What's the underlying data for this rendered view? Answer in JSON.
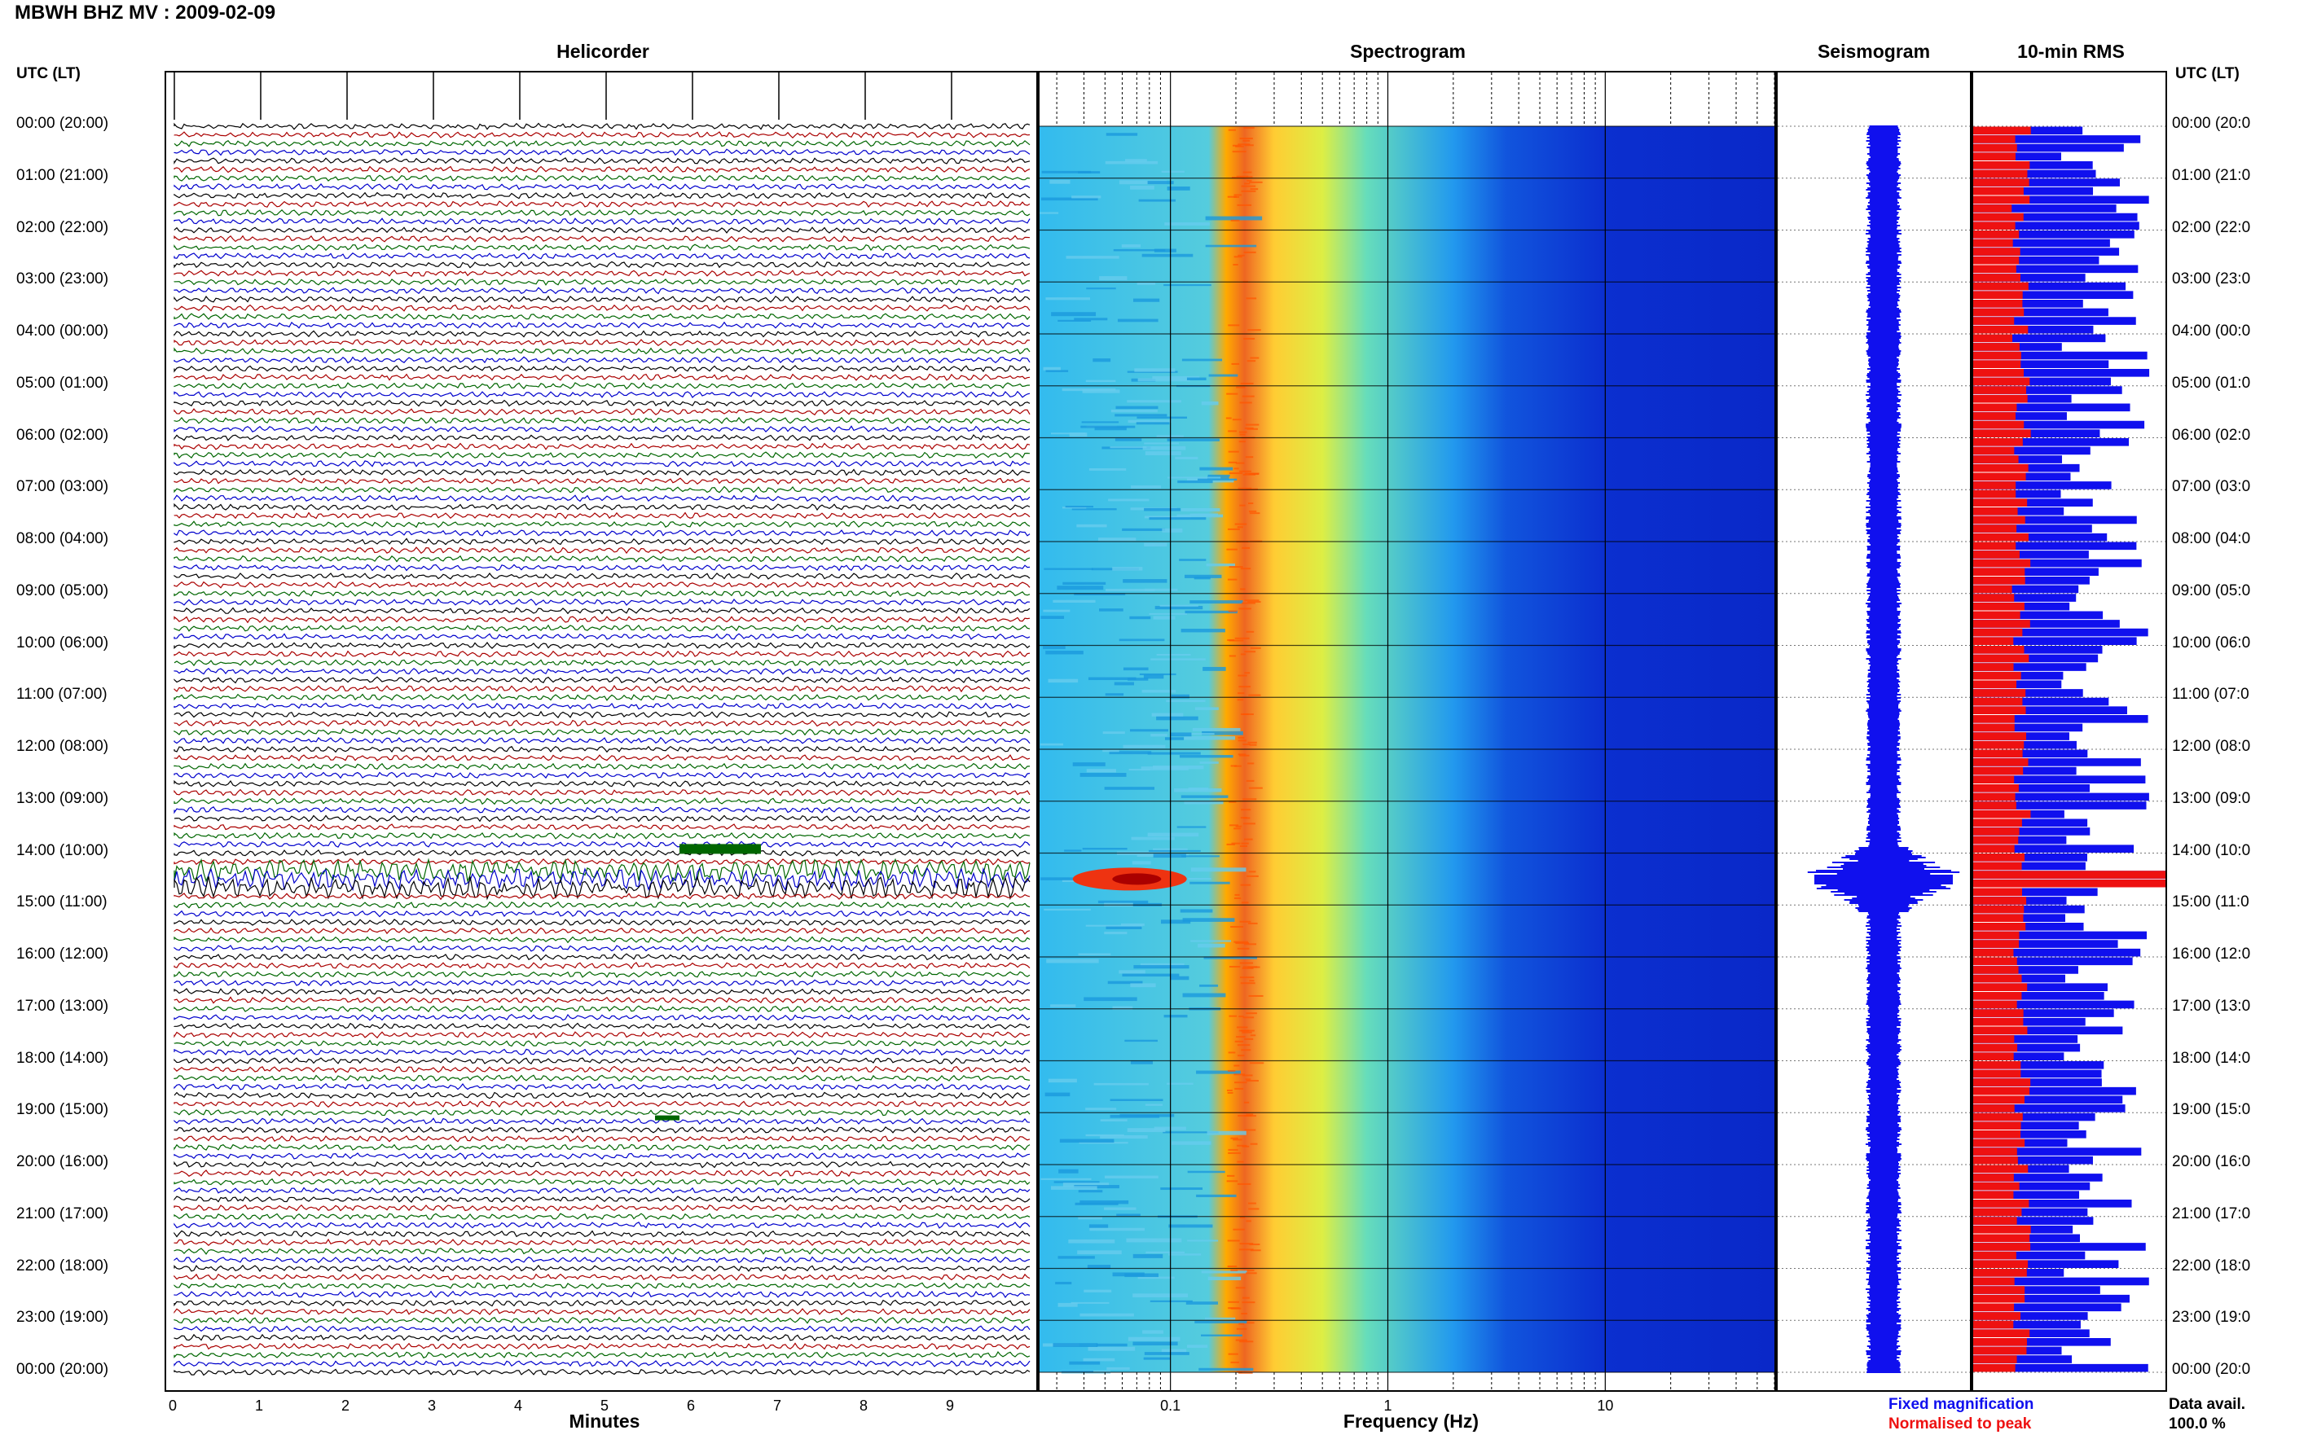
{
  "header": {
    "title": "MBWH BHZ MV : 2009-02-09"
  },
  "panels": {
    "helicorder": "Helicorder",
    "spectrogram": "Spectrogram",
    "seismogram": "Seismogram",
    "rms": "10-min RMS"
  },
  "axes": {
    "left_title": "UTC (LT)",
    "right_title": "UTC (LT)",
    "left_labels": [
      "00:00 (20:00)",
      "01:00 (21:00)",
      "02:00 (22:00)",
      "03:00 (23:00)",
      "04:00 (00:00)",
      "05:00 (01:00)",
      "06:00 (02:00)",
      "07:00 (03:00)",
      "08:00 (04:00)",
      "09:00 (05:00)",
      "10:00 (06:00)",
      "11:00 (07:00)",
      "12:00 (08:00)",
      "13:00 (09:00)",
      "14:00 (10:00)",
      "15:00 (11:00)",
      "16:00 (12:00)",
      "17:00 (13:00)",
      "18:00 (14:00)",
      "19:00 (15:00)",
      "20:00 (16:00)",
      "21:00 (17:00)",
      "22:00 (18:00)",
      "23:00 (19:00)",
      "00:00 (20:00)"
    ],
    "right_labels": [
      "00:00 (20:0",
      "01:00 (21:0",
      "02:00 (22:0",
      "03:00 (23:0",
      "04:00 (00:0",
      "05:00 (01:0",
      "06:00 (02:0",
      "07:00 (03:0",
      "08:00 (04:0",
      "09:00 (05:0",
      "10:00 (06:0",
      "11:00 (07:0",
      "12:00 (08:0",
      "13:00 (09:0",
      "14:00 (10:0",
      "15:00 (11:0",
      "16:00 (12:0",
      "17:00 (13:0",
      "18:00 (14:0",
      "19:00 (15:0",
      "20:00 (16:0",
      "21:00 (17:0",
      "22:00 (18:0",
      "23:00 (19:0",
      "00:00 (20:0"
    ],
    "heli_xticks": [
      "0",
      "1",
      "2",
      "3",
      "4",
      "5",
      "6",
      "7",
      "8",
      "9"
    ],
    "heli_xlabel": "Minutes",
    "spec_xticks": [
      "0.1",
      "1",
      "10"
    ],
    "spec_xlabel": "Frequency (Hz)"
  },
  "legend": {
    "fixed": "Fixed magnification",
    "normalised": "Normalised to peak",
    "data_avail_label": "Data avail.",
    "data_avail_value": "100.0 %"
  },
  "colors": {
    "trace_cycle": [
      "#000000",
      "#aa0000",
      "#006600",
      "#0000cc"
    ],
    "seismogram": "#1010ee",
    "rms_fixed": "#1010ee",
    "rms_normalised": "#ee1111"
  },
  "chart_data": [
    {
      "type": "line",
      "name": "helicorder",
      "x_range_minutes": [
        0,
        10
      ],
      "traces_per_hour": 6,
      "hours": 24,
      "event_hour_utc": 14.5,
      "event_traces_utc": [
        "14:20",
        "14:30",
        "14:40"
      ]
    },
    {
      "type": "heatmap",
      "name": "spectrogram",
      "x_scale": "log",
      "x_range_hz": [
        0.025,
        60
      ],
      "peak_band_hz": [
        0.18,
        0.3
      ],
      "event_low_freq_hz": [
        0.04,
        0.12
      ],
      "event_time_utc": "14:30"
    },
    {
      "type": "line",
      "name": "seismogram",
      "event_time_utc": "14:30"
    },
    {
      "type": "bar",
      "name": "10-min RMS",
      "orientation": "horizontal",
      "bins_per_hour": 6,
      "series": [
        {
          "name": "Fixed magnification",
          "relative_range": [
            0.45,
            0.92
          ],
          "event_value": 1.0
        },
        {
          "name": "Normalised to peak",
          "relative_range": [
            0.2,
            0.3
          ],
          "event_value": 1.0
        }
      ]
    }
  ]
}
